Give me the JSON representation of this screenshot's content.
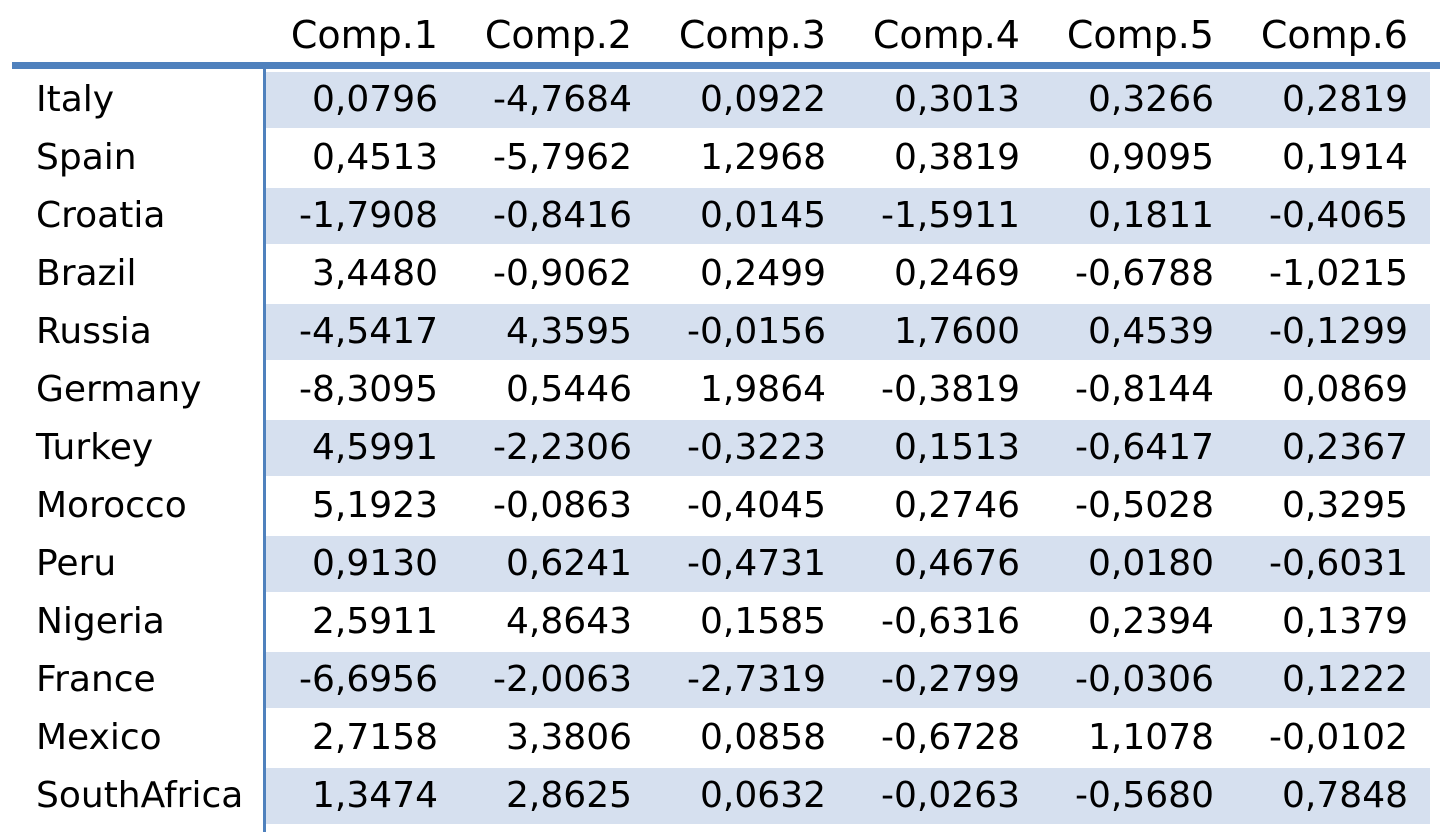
{
  "table": {
    "columns": [
      "Comp.1",
      "Comp.2",
      "Comp.3",
      "Comp.4",
      "Comp.5",
      "Comp.6"
    ],
    "rows": [
      {
        "label": "Italy",
        "values": [
          "0,0796",
          "-4,7684",
          "0,0922",
          "0,3013",
          "0,3266",
          "0,2819"
        ]
      },
      {
        "label": "Spain",
        "values": [
          "0,4513",
          "-5,7962",
          "1,2968",
          "0,3819",
          "0,9095",
          "0,1914"
        ]
      },
      {
        "label": "Croatia",
        "values": [
          "-1,7908",
          "-0,8416",
          "0,0145",
          "-1,5911",
          "0,1811",
          "-0,4065"
        ]
      },
      {
        "label": "Brazil",
        "values": [
          "3,4480",
          "-0,9062",
          "0,2499",
          "0,2469",
          "-0,6788",
          "-1,0215"
        ]
      },
      {
        "label": "Russia",
        "values": [
          "-4,5417",
          "4,3595",
          "-0,0156",
          "1,7600",
          "0,4539",
          "-0,1299"
        ]
      },
      {
        "label": "Germany",
        "values": [
          "-8,3095",
          "0,5446",
          "1,9864",
          "-0,3819",
          "-0,8144",
          "0,0869"
        ]
      },
      {
        "label": "Turkey",
        "values": [
          "4,5991",
          "-2,2306",
          "-0,3223",
          "0,1513",
          "-0,6417",
          "0,2367"
        ]
      },
      {
        "label": "Morocco",
        "values": [
          "5,1923",
          "-0,0863",
          "-0,4045",
          "0,2746",
          "-0,5028",
          "0,3295"
        ]
      },
      {
        "label": "Peru",
        "values": [
          "0,9130",
          "0,6241",
          "-0,4731",
          "0,4676",
          "0,0180",
          "-0,6031"
        ]
      },
      {
        "label": "Nigeria",
        "values": [
          "2,5911",
          "4,8643",
          "0,1585",
          "-0,6316",
          "0,2394",
          "0,1379"
        ]
      },
      {
        "label": "France",
        "values": [
          "-6,6956",
          "-2,0063",
          "-2,7319",
          "-0,2799",
          "-0,0306",
          "0,1222"
        ]
      },
      {
        "label": "Mexico",
        "values": [
          "2,7158",
          "3,3806",
          "0,0858",
          "-0,6728",
          "1,1078",
          "-0,0102"
        ]
      },
      {
        "label": "SouthAfrica",
        "values": [
          "1,3474",
          "2,8625",
          "0,0632",
          "-0,0263",
          "-0,5680",
          "0,7848"
        ]
      }
    ]
  },
  "colors": {
    "accent": "#4f81bd",
    "band": "#d6e0ef"
  }
}
